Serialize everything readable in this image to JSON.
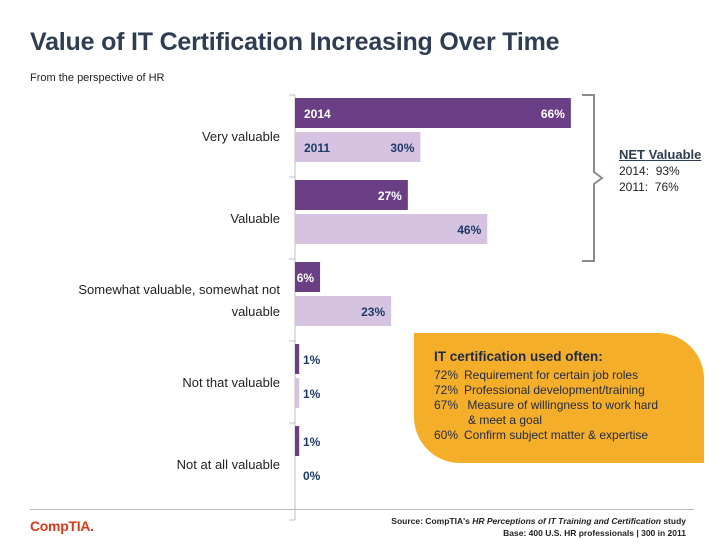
{
  "title": "Value of IT Certification Increasing Over Time",
  "subtitle": "From the perspective of HR",
  "chart_data": {
    "type": "bar",
    "orientation": "horizontal",
    "categories": [
      "Very valuable",
      "Valuable",
      "Somewhat valuable, somewhat not valuable",
      "Not that valuable",
      "Not at all valuable"
    ],
    "series": [
      {
        "name": "2014",
        "values": [
          66,
          27,
          6,
          1,
          1
        ],
        "color": "#6b3f86",
        "label_color": "#ffffff"
      },
      {
        "name": "2011",
        "values": [
          30,
          46,
          23,
          1,
          0
        ],
        "color": "#d6c3e2",
        "label_color": "#1e3a66"
      }
    ],
    "unit": "%",
    "xlim": [
      0,
      70
    ],
    "legend": "inline on first category bars"
  },
  "net_valuable": {
    "title": "NET Valuable",
    "rows": [
      "2014:  93%",
      "2011:  76%"
    ]
  },
  "callout": {
    "title": "IT certification used often:",
    "items": [
      {
        "pct": "72%",
        "text": "Requirement for certain job roles"
      },
      {
        "pct": "72%",
        "text": "Professional development/training"
      },
      {
        "pct": "67%",
        "text": " Measure of willingness to work hard"
      },
      {
        "pct": "",
        "text": "& meet a goal"
      },
      {
        "pct": "60%",
        "text": "Confirm subject matter & expertise"
      }
    ]
  },
  "logo": "CompTIA.",
  "source": {
    "line1_prefix": "Source: CompTIA's ",
    "line1_italic": "HR Perceptions of IT Training and Certification",
    "line1_suffix": " study",
    "line2": "Base: 400 U.S. HR professionals | 300 in 2011"
  }
}
